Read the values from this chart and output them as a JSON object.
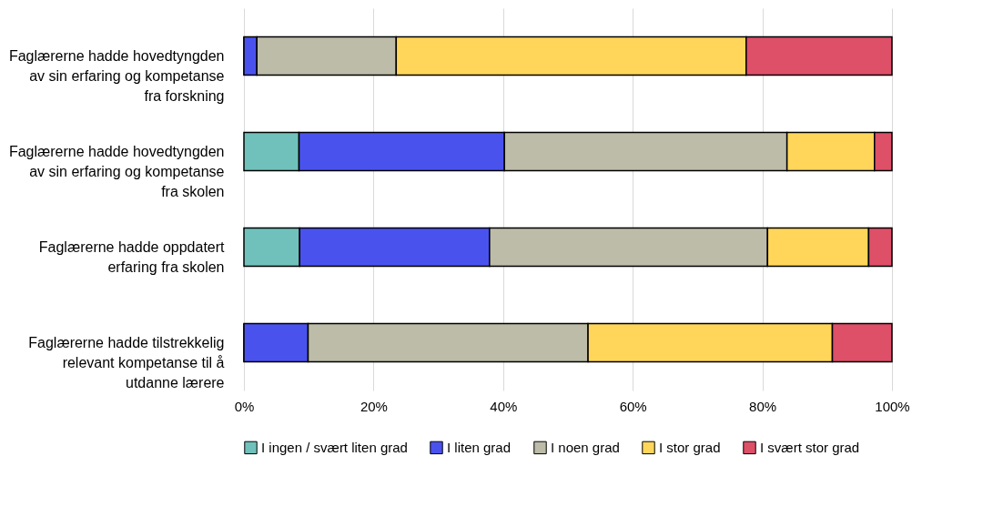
{
  "chart_data": {
    "type": "bar",
    "orientation": "horizontal",
    "stacked": true,
    "categories": [
      "Faglærerne hadde hovedtyngden av sin erfaring og kompetanse fra forskning",
      "Faglærerne hadde hovedtyngden av sin erfaring og kompetanse fra skolen",
      "Faglærerne hadde oppdatert erfaring fra skolen",
      "Faglærerne hadde tilstrekkelig relevant kompetanse til å utdanne lærere"
    ],
    "series": [
      {
        "name": "I ingen / svært liten grad",
        "color": "#70c1bb",
        "values": [
          0,
          8.5,
          8.6,
          0
        ]
      },
      {
        "name": "I liten grad",
        "color": "#4a52ee",
        "values": [
          2.0,
          31.7,
          29.3,
          9.9
        ]
      },
      {
        "name": "I noen grad",
        "color": "#bcbca8",
        "values": [
          21.5,
          43.6,
          42.9,
          43.2
        ]
      },
      {
        "name": "I stor grad",
        "color": "#ffd65a",
        "values": [
          54.0,
          13.5,
          15.6,
          37.7
        ]
      },
      {
        "name": "I svært stor grad",
        "color": "#de4f68",
        "values": [
          22.5,
          2.7,
          3.6,
          9.2
        ]
      }
    ],
    "xlim": [
      0,
      100
    ],
    "xticks": [
      {
        "value": 0,
        "label": "0%"
      },
      {
        "value": 20,
        "label": "20%"
      },
      {
        "value": 40,
        "label": "40%"
      },
      {
        "value": 60,
        "label": "60%"
      },
      {
        "value": 80,
        "label": "80%"
      },
      {
        "value": 100,
        "label": "100%"
      }
    ],
    "grid": "x",
    "legend": "bottom"
  }
}
